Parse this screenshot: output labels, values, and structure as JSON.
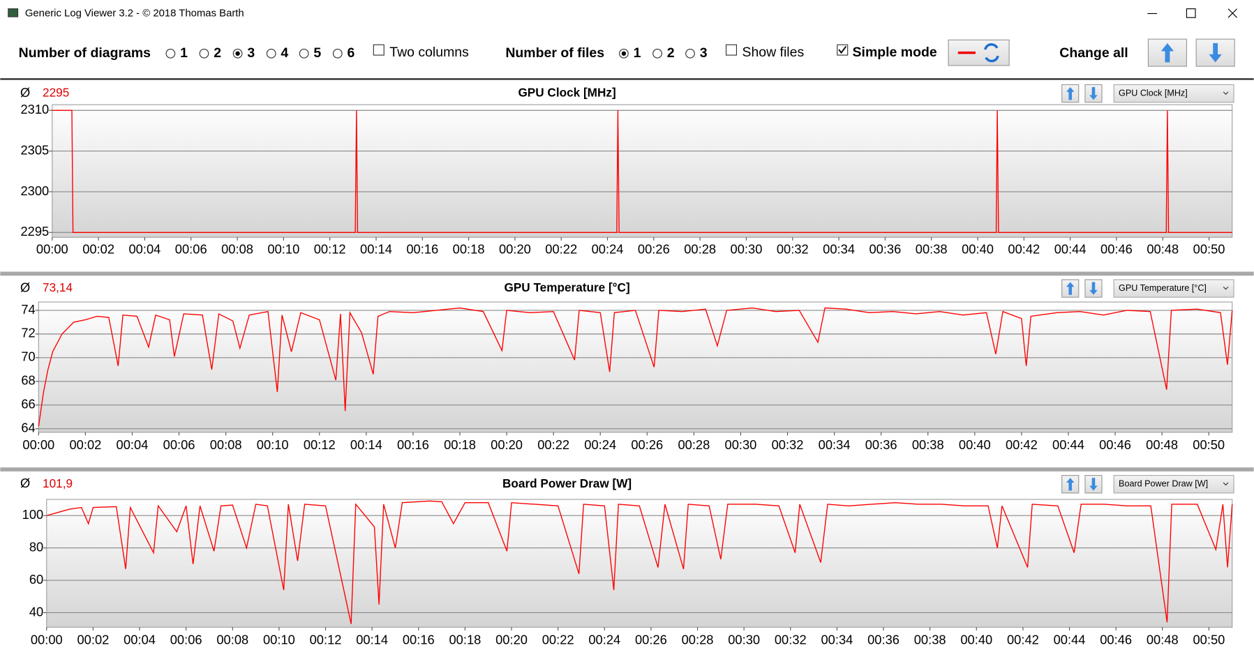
{
  "window": {
    "title": "Generic Log Viewer 3.2 - © 2018 Thomas Barth"
  },
  "toolbar": {
    "diagrams_label": "Number of diagrams",
    "diagram_options": [
      1,
      2,
      3,
      4,
      5,
      6
    ],
    "diagrams_selected": 3,
    "two_columns_label": "Two columns",
    "two_columns": false,
    "files_label": "Number of files",
    "file_options": [
      1,
      2,
      3
    ],
    "files_selected": 1,
    "show_files_label": "Show files",
    "show_files": false,
    "simple_mode_label": "Simple mode",
    "simple_mode": true,
    "change_all_label": "Change all"
  },
  "chart_data": [
    {
      "type": "line",
      "title": "GPU Clock [MHz]",
      "average_symbol": "Ø",
      "average": "2295",
      "selector": "GPU Clock [MHz]",
      "color": "#ff0000",
      "grid": true,
      "x": [
        0,
        0.85,
        0.9,
        13.1,
        13.15,
        13.2,
        24.4,
        24.45,
        24.5,
        40.8,
        40.85,
        40.9,
        48.15,
        48.2,
        48.25,
        51
      ],
      "values": [
        2310,
        2310,
        2295,
        2295,
        2310,
        2295,
        2295,
        2310,
        2295,
        2295,
        2310,
        2295,
        2295,
        2310,
        2295,
        2295
      ],
      "xlim": [
        0,
        51
      ],
      "ylim": [
        2294.4,
        2310.7
      ],
      "yticks": [
        2295,
        2300,
        2305,
        2310
      ],
      "xticks": [
        {
          "value": 0,
          "label": "00:00"
        },
        {
          "value": 2,
          "label": "00:02"
        },
        {
          "value": 4,
          "label": "00:04"
        },
        {
          "value": 6,
          "label": "00:06"
        },
        {
          "value": 8,
          "label": "00:08"
        },
        {
          "value": 10,
          "label": "00:10"
        },
        {
          "value": 12,
          "label": "00:12"
        },
        {
          "value": 14,
          "label": "00:14"
        },
        {
          "value": 16,
          "label": "00:16"
        },
        {
          "value": 18,
          "label": "00:18"
        },
        {
          "value": 20,
          "label": "00:20"
        },
        {
          "value": 22,
          "label": "00:22"
        },
        {
          "value": 24,
          "label": "00:24"
        },
        {
          "value": 26,
          "label": "00:26"
        },
        {
          "value": 28,
          "label": "00:28"
        },
        {
          "value": 30,
          "label": "00:30"
        },
        {
          "value": 32,
          "label": "00:32"
        },
        {
          "value": 34,
          "label": "00:34"
        },
        {
          "value": 36,
          "label": "00:36"
        },
        {
          "value": 38,
          "label": "00:38"
        },
        {
          "value": 40,
          "label": "00:40"
        },
        {
          "value": 42,
          "label": "00:42"
        },
        {
          "value": 44,
          "label": "00:44"
        },
        {
          "value": 46,
          "label": "00:46"
        },
        {
          "value": 48,
          "label": "00:48"
        },
        {
          "value": 50,
          "label": "00:50"
        }
      ]
    },
    {
      "type": "line",
      "title": "GPU Temperature [°C]",
      "average_symbol": "Ø",
      "average": "73,14",
      "selector": "GPU Temperature [°C]",
      "color": "#ff0000",
      "grid": true,
      "x": [
        0,
        0.2,
        0.4,
        0.6,
        1,
        1.5,
        2,
        2.5,
        3,
        3.4,
        3.6,
        4.2,
        4.7,
        5,
        5.6,
        5.8,
        6.2,
        7,
        7.4,
        7.7,
        8.3,
        8.6,
        9,
        9.8,
        10.2,
        10.4,
        10.8,
        11.2,
        12,
        12.7,
        12.9,
        13.1,
        13.3,
        13.8,
        14.3,
        14.5,
        15,
        16,
        17,
        18,
        19,
        19.8,
        20,
        21,
        22,
        22.9,
        23.1,
        24,
        24.4,
        24.6,
        25.5,
        26.3,
        26.5,
        27.5,
        28.5,
        29,
        29.4,
        30.5,
        31.5,
        32.5,
        33.3,
        33.6,
        34.5,
        35.5,
        36.5,
        37.5,
        38.5,
        39.5,
        40.5,
        40.9,
        41.2,
        42,
        42.2,
        42.4,
        43.5,
        44.5,
        45.5,
        46.5,
        47.5,
        48.2,
        48.4,
        49.5,
        50.5,
        50.8,
        51
      ],
      "values": [
        64.2,
        67,
        69,
        70.5,
        72,
        73,
        73.2,
        73.5,
        73.4,
        69.3,
        73.6,
        73.5,
        70.9,
        73.6,
        73.2,
        70.1,
        73.7,
        73.6,
        69,
        73.7,
        73.1,
        70.8,
        73.6,
        73.9,
        67.1,
        73.6,
        70.5,
        73.8,
        73.2,
        68.1,
        73.7,
        65.5,
        73.8,
        72.1,
        68.6,
        73.5,
        73.9,
        73.8,
        74,
        74.2,
        73.9,
        70.6,
        74,
        73.8,
        73.9,
        69.8,
        74,
        73.8,
        68.8,
        73.8,
        74,
        69.2,
        74,
        73.9,
        74.1,
        71,
        74,
        74.2,
        73.9,
        74,
        71.3,
        74.2,
        74.1,
        73.8,
        73.9,
        73.7,
        73.9,
        73.6,
        73.8,
        70.3,
        73.9,
        73.3,
        69.3,
        73.5,
        73.8,
        73.9,
        73.6,
        74,
        73.9,
        67.3,
        74,
        74.1,
        73.8,
        69.4,
        74
      ],
      "xlim": [
        0,
        51
      ],
      "ylim": [
        63.7,
        74.7
      ],
      "yticks": [
        64,
        66,
        68,
        70,
        72,
        74
      ],
      "xticks": [
        {
          "value": 0,
          "label": "00:00"
        },
        {
          "value": 2,
          "label": "00:02"
        },
        {
          "value": 4,
          "label": "00:04"
        },
        {
          "value": 6,
          "label": "00:06"
        },
        {
          "value": 8,
          "label": "00:08"
        },
        {
          "value": 10,
          "label": "00:10"
        },
        {
          "value": 12,
          "label": "00:12"
        },
        {
          "value": 14,
          "label": "00:14"
        },
        {
          "value": 16,
          "label": "00:16"
        },
        {
          "value": 18,
          "label": "00:18"
        },
        {
          "value": 20,
          "label": "00:20"
        },
        {
          "value": 22,
          "label": "00:22"
        },
        {
          "value": 24,
          "label": "00:24"
        },
        {
          "value": 26,
          "label": "00:26"
        },
        {
          "value": 28,
          "label": "00:28"
        },
        {
          "value": 30,
          "label": "00:30"
        },
        {
          "value": 32,
          "label": "00:32"
        },
        {
          "value": 34,
          "label": "00:34"
        },
        {
          "value": 36,
          "label": "00:36"
        },
        {
          "value": 38,
          "label": "00:38"
        },
        {
          "value": 40,
          "label": "00:40"
        },
        {
          "value": 42,
          "label": "00:42"
        },
        {
          "value": 44,
          "label": "00:44"
        },
        {
          "value": 46,
          "label": "00:46"
        },
        {
          "value": 48,
          "label": "00:48"
        },
        {
          "value": 50,
          "label": "00:50"
        }
      ]
    },
    {
      "type": "line",
      "title": "Board Power Draw [W]",
      "average_symbol": "Ø",
      "average": "101,9",
      "selector": "Board Power Draw [W]",
      "color": "#ff0000",
      "grid": true,
      "x": [
        0,
        0.5,
        1,
        1.5,
        1.8,
        2,
        3,
        3.4,
        3.6,
        4.6,
        4.8,
        5.6,
        6,
        6.3,
        6.6,
        7.2,
        7.5,
        8,
        8.6,
        9,
        9.5,
        10.2,
        10.4,
        10.8,
        11.1,
        12,
        12.8,
        13.1,
        13.3,
        14.1,
        14.3,
        14.5,
        15,
        15.3,
        16.5,
        17,
        17.5,
        18,
        19,
        19.8,
        20,
        21,
        22,
        22.9,
        23.1,
        24,
        24.4,
        24.6,
        25.5,
        26.3,
        26.6,
        27.4,
        27.6,
        28.5,
        29,
        29.3,
        30.5,
        31.5,
        32.2,
        32.4,
        33.3,
        33.6,
        34.5,
        35.5,
        36.5,
        37.5,
        38.5,
        39.5,
        40.5,
        40.9,
        41.1,
        42.2,
        42.4,
        43.5,
        44.2,
        44.5,
        45.5,
        46.5,
        47.5,
        48.2,
        48.4,
        49.5,
        50.3,
        50.6,
        50.8,
        51
      ],
      "values": [
        100,
        102,
        104,
        105,
        95,
        105,
        105.5,
        67,
        105,
        77,
        106,
        90,
        106,
        70,
        106,
        78,
        106,
        106.5,
        80,
        107,
        106,
        54,
        107,
        72,
        107,
        106,
        53,
        33,
        107,
        93,
        45,
        107,
        80,
        108,
        109,
        108.5,
        95,
        108,
        108,
        78,
        108,
        107,
        106,
        64,
        107,
        106,
        54,
        107,
        106,
        68,
        107,
        67,
        107,
        106,
        73,
        107,
        107,
        106,
        77,
        107,
        71,
        107,
        106,
        107,
        108,
        107,
        107,
        106,
        106,
        80,
        106,
        68,
        107,
        106,
        77,
        107,
        107,
        106,
        106,
        34,
        107,
        107,
        79,
        107,
        68,
        107
      ],
      "xlim": [
        0,
        51
      ],
      "ylim": [
        31,
        110
      ],
      "yticks": [
        40,
        60,
        80,
        100
      ],
      "xticks": [
        {
          "value": 0,
          "label": "00:00"
        },
        {
          "value": 2,
          "label": "00:02"
        },
        {
          "value": 4,
          "label": "00:04"
        },
        {
          "value": 6,
          "label": "00:06"
        },
        {
          "value": 8,
          "label": "00:08"
        },
        {
          "value": 10,
          "label": "00:10"
        },
        {
          "value": 12,
          "label": "00:12"
        },
        {
          "value": 14,
          "label": "00:14"
        },
        {
          "value": 16,
          "label": "00:16"
        },
        {
          "value": 18,
          "label": "00:18"
        },
        {
          "value": 20,
          "label": "00:20"
        },
        {
          "value": 22,
          "label": "00:22"
        },
        {
          "value": 24,
          "label": "00:24"
        },
        {
          "value": 26,
          "label": "00:26"
        },
        {
          "value": 28,
          "label": "00:28"
        },
        {
          "value": 30,
          "label": "00:30"
        },
        {
          "value": 32,
          "label": "00:32"
        },
        {
          "value": 34,
          "label": "00:34"
        },
        {
          "value": 36,
          "label": "00:36"
        },
        {
          "value": 38,
          "label": "00:38"
        },
        {
          "value": 40,
          "label": "00:40"
        },
        {
          "value": 42,
          "label": "00:42"
        },
        {
          "value": 44,
          "label": "00:44"
        },
        {
          "value": 46,
          "label": "00:46"
        },
        {
          "value": 48,
          "label": "00:48"
        },
        {
          "value": 50,
          "label": "00:50"
        }
      ]
    }
  ]
}
